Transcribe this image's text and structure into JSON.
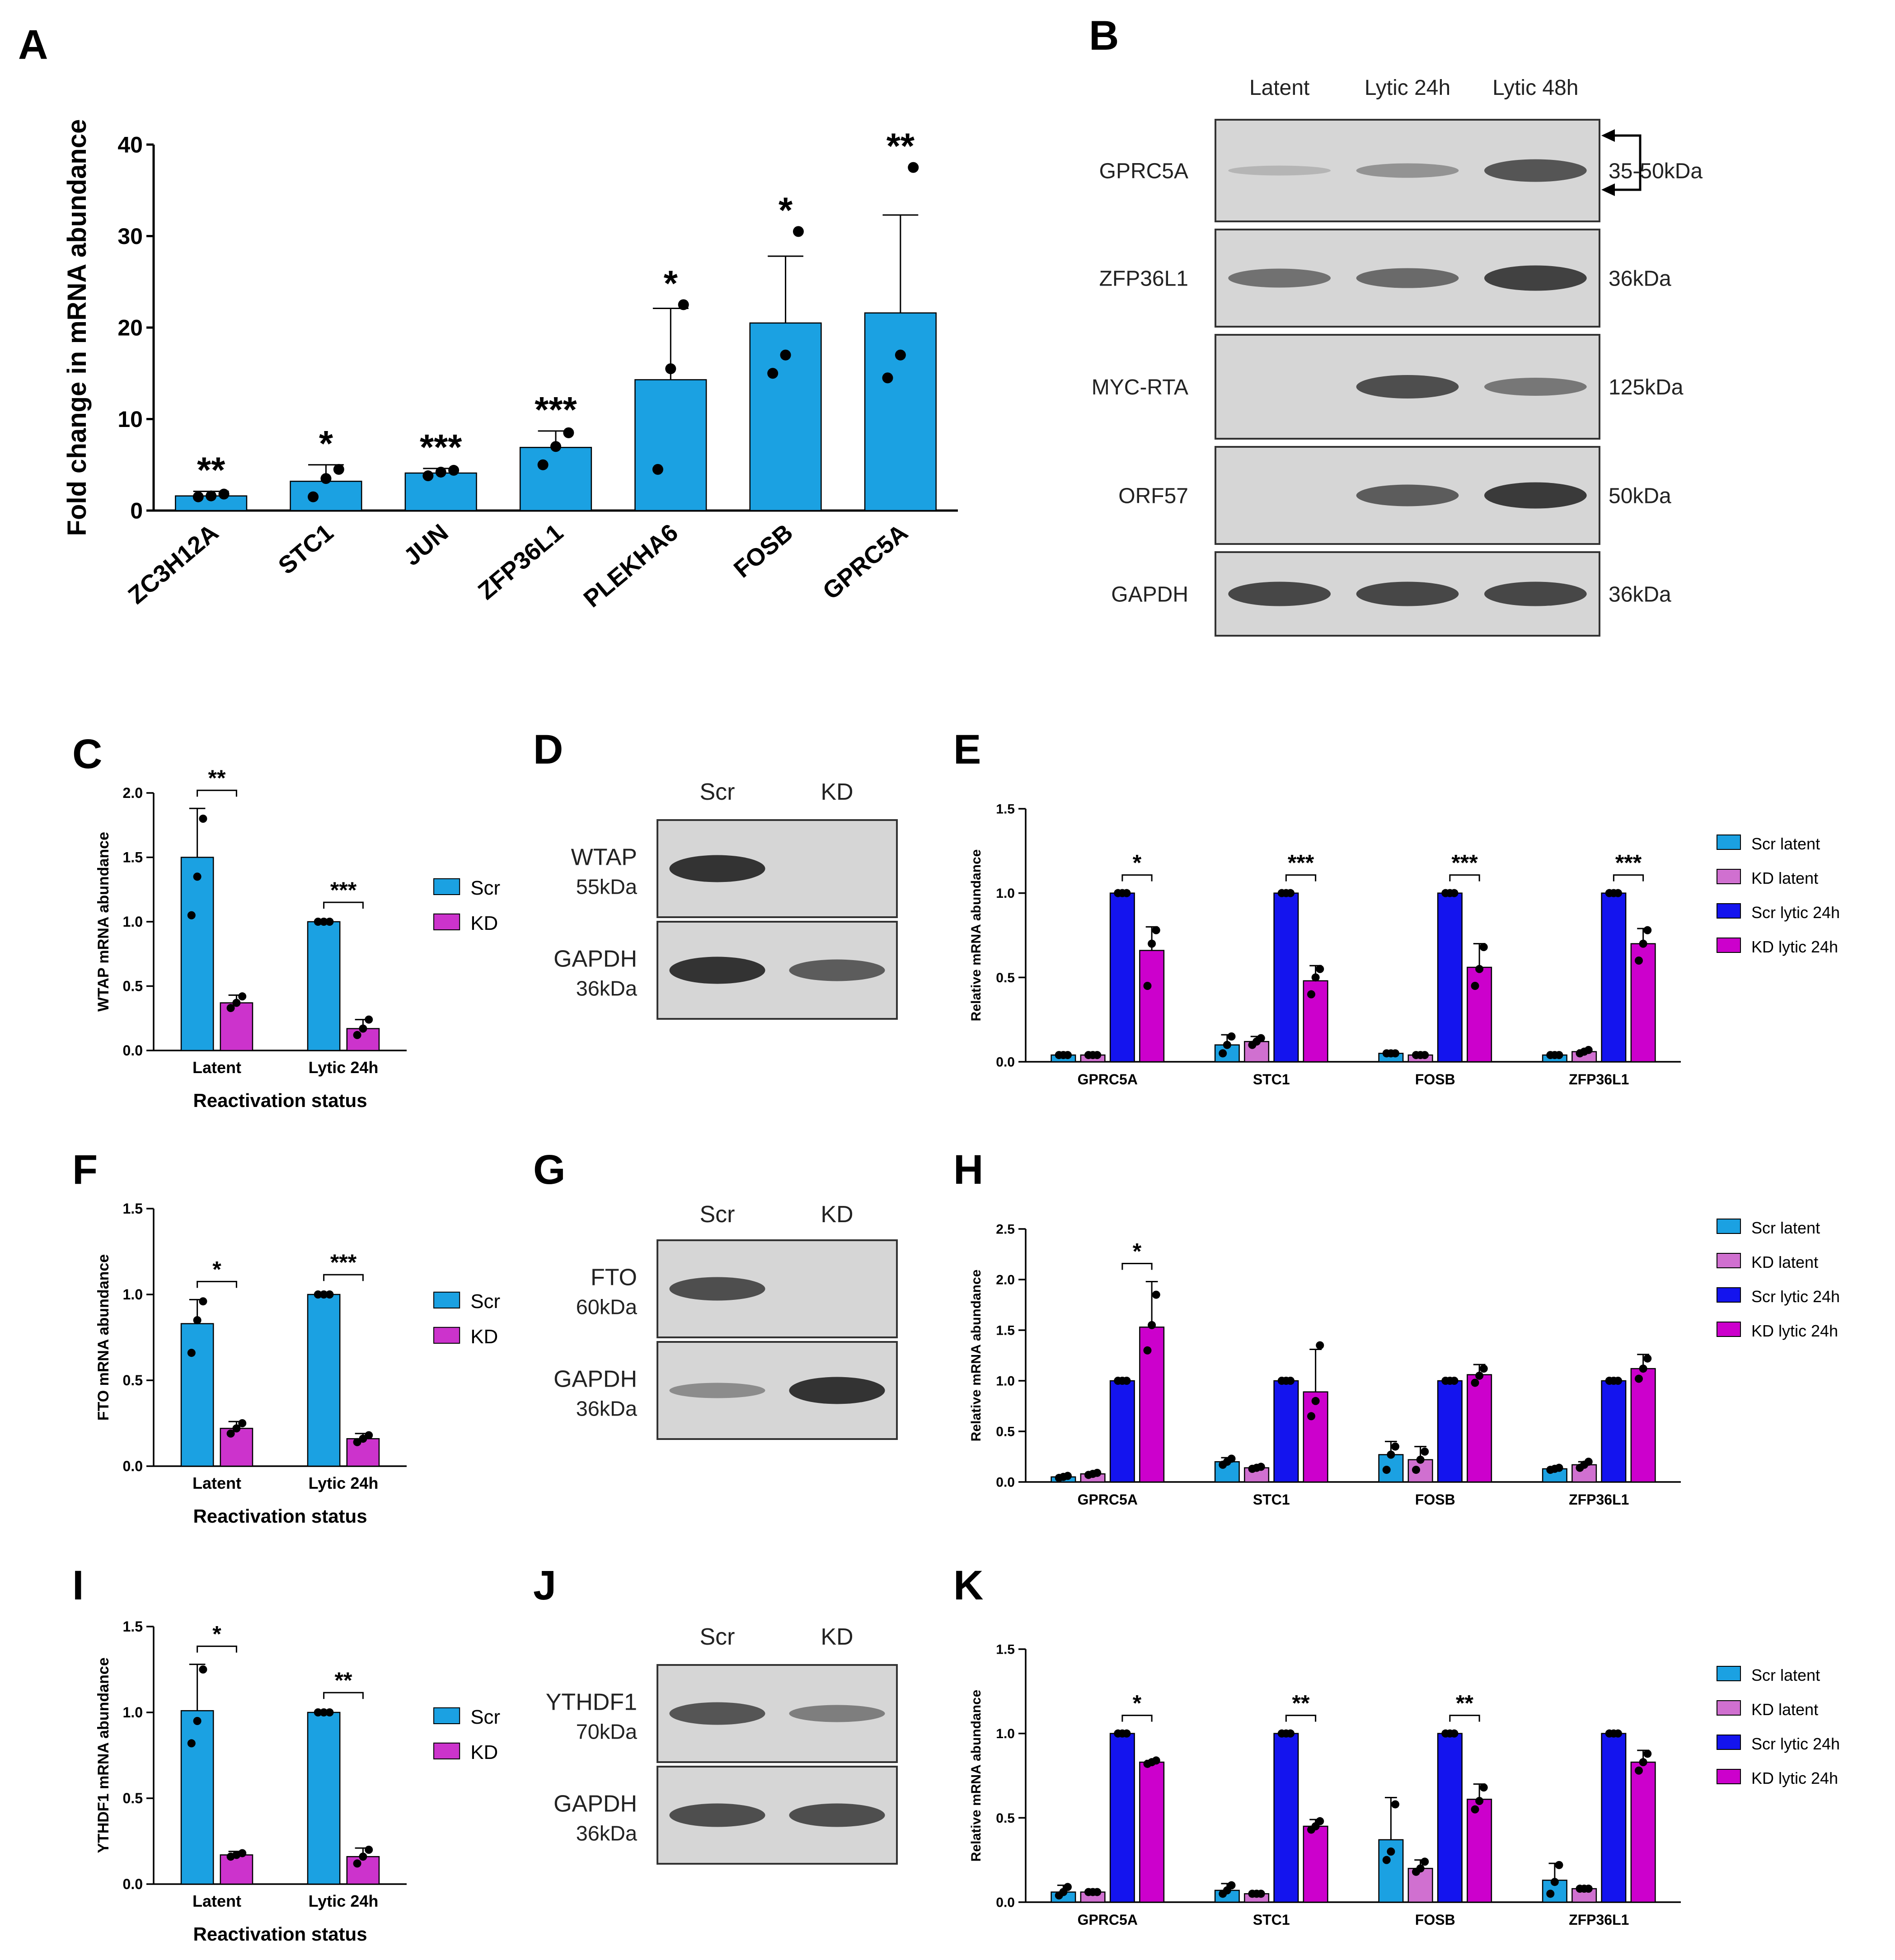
{
  "colors": {
    "bar_blue": "#1ba1e2",
    "bar_magenta": "#cc33cc",
    "scr_latent": "#1ba1e2",
    "kd_latent": "#d070d0",
    "scr_lytic": "#1414ee",
    "kd_lytic": "#cc00cc",
    "blot_bg": "#d6d6d6",
    "band": "#2a2a2a"
  },
  "panel_letters": [
    "A",
    "B",
    "C",
    "D",
    "E",
    "F",
    "G",
    "H",
    "I",
    "J",
    "K"
  ],
  "blots": {
    "B": {
      "columns": [
        "Latent",
        "Lytic 24h",
        "Lytic 48h"
      ],
      "rows": [
        {
          "label": "GPRC5A",
          "kda": "35-50kDa",
          "bands": [
            0.05,
            0.3,
            0.75
          ]
        },
        {
          "label": "ZFP36L1",
          "kda": "36kDa",
          "bands": [
            0.55,
            0.6,
            0.9
          ]
        },
        {
          "label": "MYC-RTA",
          "kda": "125kDa",
          "bands": [
            0.0,
            0.8,
            0.5
          ]
        },
        {
          "label": "ORF57",
          "kda": "50kDa",
          "bands": [
            0.0,
            0.7,
            0.95
          ]
        },
        {
          "label": "GAPDH",
          "kda": "36kDa",
          "bands": [
            0.85,
            0.85,
            0.85
          ]
        }
      ]
    },
    "D": {
      "columns": [
        "Scr",
        "KD"
      ],
      "rows": [
        {
          "label": "WTAP",
          "kda": "55kDa",
          "bands": [
            1.0,
            0.0
          ]
        },
        {
          "label": "GAPDH",
          "kda": "36kDa",
          "bands": [
            1.0,
            0.7
          ]
        }
      ]
    },
    "G": {
      "columns": [
        "Scr",
        "KD"
      ],
      "rows": [
        {
          "label": "FTO",
          "kda": "60kDa",
          "bands": [
            0.8,
            0.0
          ]
        },
        {
          "label": "GAPDH",
          "kda": "36kDa",
          "bands": [
            0.35,
            1.0
          ]
        }
      ]
    },
    "J": {
      "columns": [
        "Scr",
        "KD"
      ],
      "rows": [
        {
          "label": "YTHDF1",
          "kda": "70kDa",
          "bands": [
            0.75,
            0.45
          ]
        },
        {
          "label": "GAPDH",
          "kda": "36kDa",
          "bands": [
            0.8,
            0.8
          ]
        }
      ]
    }
  },
  "chart_data": [
    {
      "id": "A",
      "type": "bar",
      "ylabel": "Fold change in mRNA abundance",
      "ylim": [
        0,
        40
      ],
      "yticks": [
        0,
        10,
        20,
        30,
        40
      ],
      "categories": [
        "ZC3H12A",
        "STC1",
        "JUN",
        "ZFP36L1",
        "PLEKHA6",
        "FOSB",
        "GPRC5A"
      ],
      "values": [
        1.6,
        3.2,
        4.1,
        6.9,
        14.3,
        20.5,
        21.6
      ],
      "errors": [
        0.5,
        1.8,
        0.5,
        1.8,
        7.8,
        7.3,
        10.7
      ],
      "points": [
        [
          1.5,
          1.6,
          1.8
        ],
        [
          1.5,
          3.5,
          4.5
        ],
        [
          3.8,
          4.2,
          4.4
        ],
        [
          5.0,
          7.0,
          8.5
        ],
        [
          4.5,
          15.5,
          22.5
        ],
        [
          15.0,
          17.0,
          30.5
        ],
        [
          14.5,
          17.0,
          37.5
        ]
      ],
      "significance": [
        "**",
        "*",
        "***",
        "***",
        "*",
        "*",
        "**"
      ]
    },
    {
      "id": "C",
      "type": "bar",
      "ylabel": "WTAP mRNA abundance",
      "xlabel": "Reactivation status",
      "ylim": [
        0,
        2.0
      ],
      "yticks": [
        0.0,
        0.5,
        1.0,
        1.5,
        2.0
      ],
      "categories": [
        "Latent",
        "Lytic 24h"
      ],
      "series": [
        {
          "name": "Scr",
          "values": [
            1.5,
            1.0
          ],
          "errors": [
            0.38,
            0.01
          ],
          "points": [
            [
              1.05,
              1.35,
              1.8
            ],
            [
              1.0,
              1.0,
              1.0
            ]
          ]
        },
        {
          "name": "KD",
          "values": [
            0.37,
            0.17
          ],
          "errors": [
            0.06,
            0.07
          ],
          "points": [
            [
              0.33,
              0.37,
              0.42
            ],
            [
              0.12,
              0.17,
              0.24
            ]
          ]
        }
      ],
      "significance": [
        "**",
        "***"
      ]
    },
    {
      "id": "E",
      "type": "bar",
      "ylabel": "Relative mRNA abundance",
      "ylim": [
        0,
        1.5
      ],
      "yticks": [
        0.0,
        0.5,
        1.0,
        1.5
      ],
      "categories": [
        "GPRC5A",
        "STC1",
        "FOSB",
        "ZFP36L1"
      ],
      "series": [
        {
          "name": "Scr latent",
          "values": [
            0.04,
            0.1,
            0.05,
            0.04
          ],
          "errors": [
            0.01,
            0.06,
            0.01,
            0.01
          ],
          "points": [
            [
              0.04,
              0.04,
              0.04
            ],
            [
              0.05,
              0.1,
              0.15
            ],
            [
              0.05,
              0.05,
              0.05
            ],
            [
              0.04,
              0.04,
              0.04
            ]
          ]
        },
        {
          "name": "KD latent",
          "values": [
            0.04,
            0.12,
            0.04,
            0.06
          ],
          "errors": [
            0.01,
            0.03,
            0.01,
            0.01
          ],
          "points": [
            [
              0.04,
              0.04,
              0.04
            ],
            [
              0.1,
              0.12,
              0.14
            ],
            [
              0.04,
              0.04,
              0.04
            ],
            [
              0.05,
              0.06,
              0.07
            ]
          ]
        },
        {
          "name": "Scr lytic 24h",
          "values": [
            1.0,
            1.0,
            1.0,
            1.0
          ],
          "errors": [
            0,
            0,
            0,
            0
          ],
          "points": [
            [
              1.0,
              1.0,
              1.0
            ],
            [
              1.0,
              1.0,
              1.0
            ],
            [
              1.0,
              1.0,
              1.0
            ],
            [
              1.0,
              1.0,
              1.0
            ]
          ]
        },
        {
          "name": "KD lytic 24h",
          "values": [
            0.66,
            0.48,
            0.56,
            0.7
          ],
          "errors": [
            0.14,
            0.09,
            0.14,
            0.09
          ],
          "points": [
            [
              0.45,
              0.7,
              0.78
            ],
            [
              0.4,
              0.5,
              0.55
            ],
            [
              0.45,
              0.55,
              0.68
            ],
            [
              0.6,
              0.7,
              0.78
            ]
          ]
        }
      ],
      "significance": [
        "*",
        "***",
        "***",
        "***"
      ]
    },
    {
      "id": "F",
      "type": "bar",
      "ylabel": "FTO mRNA abundance",
      "xlabel": "Reactivation status",
      "ylim": [
        0,
        1.5
      ],
      "yticks": [
        0.0,
        0.5,
        1.0,
        1.5
      ],
      "categories": [
        "Latent",
        "Lytic 24h"
      ],
      "series": [
        {
          "name": "Scr",
          "values": [
            0.83,
            1.0
          ],
          "errors": [
            0.14,
            0.01
          ],
          "points": [
            [
              0.66,
              0.85,
              0.96
            ],
            [
              1.0,
              1.0,
              1.0
            ]
          ]
        },
        {
          "name": "KD",
          "values": [
            0.22,
            0.16
          ],
          "errors": [
            0.04,
            0.03
          ],
          "points": [
            [
              0.19,
              0.22,
              0.25
            ],
            [
              0.14,
              0.16,
              0.18
            ]
          ]
        }
      ],
      "significance": [
        "*",
        "***"
      ]
    },
    {
      "id": "H",
      "type": "bar",
      "ylabel": "Relative mRNA abundance",
      "ylim": [
        0,
        2.5
      ],
      "yticks": [
        0.0,
        0.5,
        1.0,
        1.5,
        2.0,
        2.5
      ],
      "categories": [
        "GPRC5A",
        "STC1",
        "FOSB",
        "ZFP36L1"
      ],
      "series": [
        {
          "name": "Scr latent",
          "values": [
            0.05,
            0.2,
            0.27,
            0.13
          ],
          "errors": [
            0.02,
            0.04,
            0.13,
            0.02
          ],
          "points": [
            [
              0.04,
              0.05,
              0.06
            ],
            [
              0.17,
              0.2,
              0.23
            ],
            [
              0.12,
              0.27,
              0.35
            ],
            [
              0.12,
              0.13,
              0.14
            ]
          ]
        },
        {
          "name": "KD latent",
          "values": [
            0.08,
            0.14,
            0.22,
            0.17
          ],
          "errors": [
            0.02,
            0.02,
            0.13,
            0.03
          ],
          "points": [
            [
              0.07,
              0.08,
              0.09
            ],
            [
              0.13,
              0.14,
              0.15
            ],
            [
              0.12,
              0.22,
              0.3
            ],
            [
              0.14,
              0.17,
              0.2
            ]
          ]
        },
        {
          "name": "Scr lytic 24h",
          "values": [
            1.0,
            1.0,
            1.0,
            1.0
          ],
          "errors": [
            0,
            0,
            0,
            0
          ],
          "points": [
            [
              1.0,
              1.0,
              1.0
            ],
            [
              1.0,
              1.0,
              1.0
            ],
            [
              1.0,
              1.0,
              1.0
            ],
            [
              1.0,
              1.0,
              1.0
            ]
          ]
        },
        {
          "name": "KD lytic 24h",
          "values": [
            1.53,
            0.89,
            1.06,
            1.12
          ],
          "errors": [
            0.45,
            0.42,
            0.1,
            0.14
          ],
          "points": [
            [
              1.3,
              1.55,
              1.85
            ],
            [
              0.65,
              0.8,
              1.35
            ],
            [
              0.98,
              1.05,
              1.12
            ],
            [
              1.02,
              1.12,
              1.22
            ]
          ]
        }
      ],
      "significance": [
        "*",
        "",
        "",
        ""
      ]
    },
    {
      "id": "I",
      "type": "bar",
      "ylabel": "YTHDF1 mRNA abundance",
      "xlabel": "Reactivation status",
      "ylim": [
        0,
        1.5
      ],
      "yticks": [
        0.0,
        0.5,
        1.0,
        1.5
      ],
      "categories": [
        "Latent",
        "Lytic 24h"
      ],
      "series": [
        {
          "name": "Scr",
          "values": [
            1.01,
            1.0
          ],
          "errors": [
            0.27,
            0.01
          ],
          "points": [
            [
              0.82,
              0.95,
              1.25
            ],
            [
              1.0,
              1.0,
              1.0
            ]
          ]
        },
        {
          "name": "KD",
          "values": [
            0.17,
            0.16
          ],
          "errors": [
            0.02,
            0.05
          ],
          "points": [
            [
              0.16,
              0.17,
              0.18
            ],
            [
              0.12,
              0.16,
              0.2
            ]
          ]
        }
      ],
      "significance": [
        "*",
        "**"
      ]
    },
    {
      "id": "K",
      "type": "bar",
      "ylabel": "Relative mRNA abundance",
      "ylim": [
        0,
        1.5
      ],
      "yticks": [
        0.0,
        0.5,
        1.0,
        1.5
      ],
      "categories": [
        "GPRC5A",
        "STC1",
        "FOSB",
        "ZFP36L1"
      ],
      "series": [
        {
          "name": "Scr latent",
          "values": [
            0.06,
            0.07,
            0.37,
            0.13
          ],
          "errors": [
            0.04,
            0.04,
            0.25,
            0.1
          ],
          "points": [
            [
              0.04,
              0.06,
              0.09
            ],
            [
              0.05,
              0.07,
              0.1
            ],
            [
              0.25,
              0.3,
              0.58
            ],
            [
              0.05,
              0.12,
              0.22
            ]
          ]
        },
        {
          "name": "KD latent",
          "values": [
            0.06,
            0.05,
            0.2,
            0.08
          ],
          "errors": [
            0.01,
            0.01,
            0.05,
            0.01
          ],
          "points": [
            [
              0.06,
              0.06,
              0.06
            ],
            [
              0.05,
              0.05,
              0.05
            ],
            [
              0.18,
              0.2,
              0.24
            ],
            [
              0.08,
              0.08,
              0.08
            ]
          ]
        },
        {
          "name": "Scr lytic 24h",
          "values": [
            1.0,
            1.0,
            1.0,
            1.0
          ],
          "errors": [
            0,
            0,
            0,
            0
          ],
          "points": [
            [
              1.0,
              1.0,
              1.0
            ],
            [
              1.0,
              1.0,
              1.0
            ],
            [
              1.0,
              1.0,
              1.0
            ],
            [
              1.0,
              1.0,
              1.0
            ]
          ]
        },
        {
          "name": "KD lytic 24h",
          "values": [
            0.83,
            0.45,
            0.61,
            0.83
          ],
          "errors": [
            0.01,
            0.04,
            0.09,
            0.07
          ],
          "points": [
            [
              0.82,
              0.83,
              0.84
            ],
            [
              0.43,
              0.45,
              0.48
            ],
            [
              0.55,
              0.6,
              0.68
            ],
            [
              0.78,
              0.83,
              0.88
            ]
          ]
        }
      ],
      "significance": [
        "*",
        "**",
        "**",
        ""
      ]
    }
  ]
}
